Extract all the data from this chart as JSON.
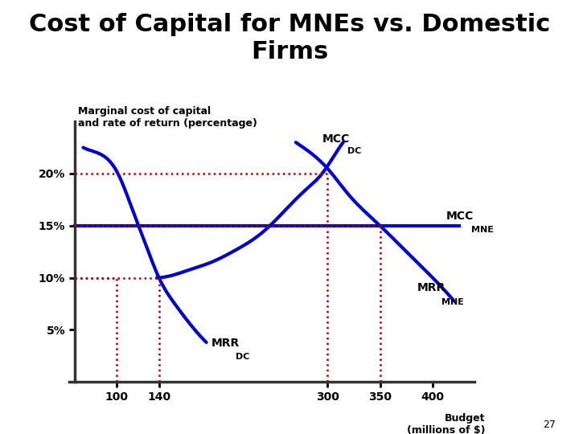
{
  "title": "Cost of Capital for MNEs vs. Domestic\nFirms",
  "ylabel_text": "Marginal cost of capital\nand rate of return (percentage)",
  "xlabel_line1": "Budget",
  "xlabel_line2": "(millions of $)",
  "page_number": "27",
  "x_ticks": [
    100,
    140,
    300,
    350,
    400
  ],
  "y_ticks": [
    5,
    10,
    15,
    20
  ],
  "y_tick_labels": [
    "5%",
    "10%",
    "15%",
    "20%"
  ],
  "xmin": 55,
  "xmax": 440,
  "ymin": 0,
  "ymax": 25,
  "curve_color": "#0000CD",
  "dotted_color": "#AA0000",
  "background": "#FFFFFF",
  "lw_curve": 3.0,
  "lw_dot": 1.8,
  "title_fontsize": 22,
  "label_fontsize": 10,
  "sub_fontsize": 8,
  "tick_fontsize": 10
}
